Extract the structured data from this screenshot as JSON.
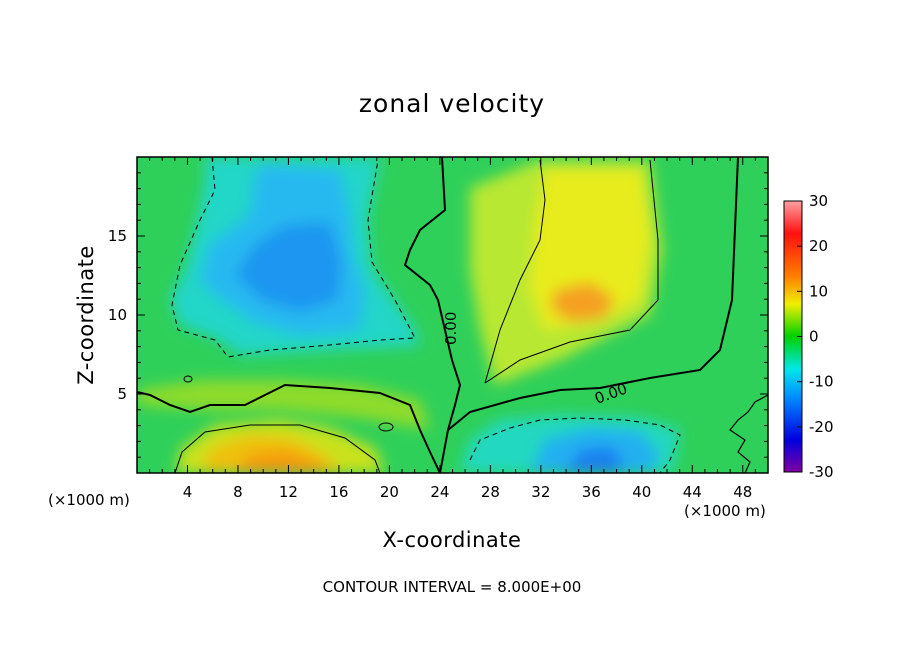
{
  "chart_data": {
    "type": "heatmap",
    "title": "zonal velocity",
    "xlabel": "X-coordinate",
    "ylabel": "Z-coordinate",
    "x_unit": "(×1000 m)",
    "z_unit": "(×1000 m)",
    "xlim": [
      0,
      50
    ],
    "ylim": [
      0,
      20
    ],
    "x_ticks": [
      4,
      8,
      12,
      16,
      20,
      24,
      28,
      32,
      36,
      40,
      44,
      48
    ],
    "y_ticks": [
      5,
      10,
      15
    ],
    "colorbar": {
      "min": -30,
      "max": 30,
      "ticks": [
        30,
        20,
        10,
        0,
        -10,
        -20,
        -30
      ]
    },
    "contour_interval_text": "CONTOUR INTERVAL = 8.000E+00",
    "zero_contour_labels": [
      "0.00",
      "0.00"
    ],
    "field_features": [
      {
        "sign": "negative",
        "center_x": 12,
        "center_z": 12.5,
        "value": -13
      },
      {
        "sign": "negative",
        "center_x": 36,
        "center_z": 1.5,
        "value": -15
      },
      {
        "sign": "positive",
        "center_x": 11,
        "center_z": 1,
        "value": 14
      },
      {
        "sign": "positive",
        "center_x": 35,
        "center_z": 10.5,
        "value": 14
      }
    ]
  },
  "colors": {
    "colormap": [
      "#8000a0",
      "#0000e0",
      "#0090ff",
      "#00e8e8",
      "#00d000",
      "#f0f000",
      "#ff8000",
      "#ff1010",
      "#ffa0a0"
    ],
    "frame": "#000000",
    "background": "#ffffff"
  }
}
